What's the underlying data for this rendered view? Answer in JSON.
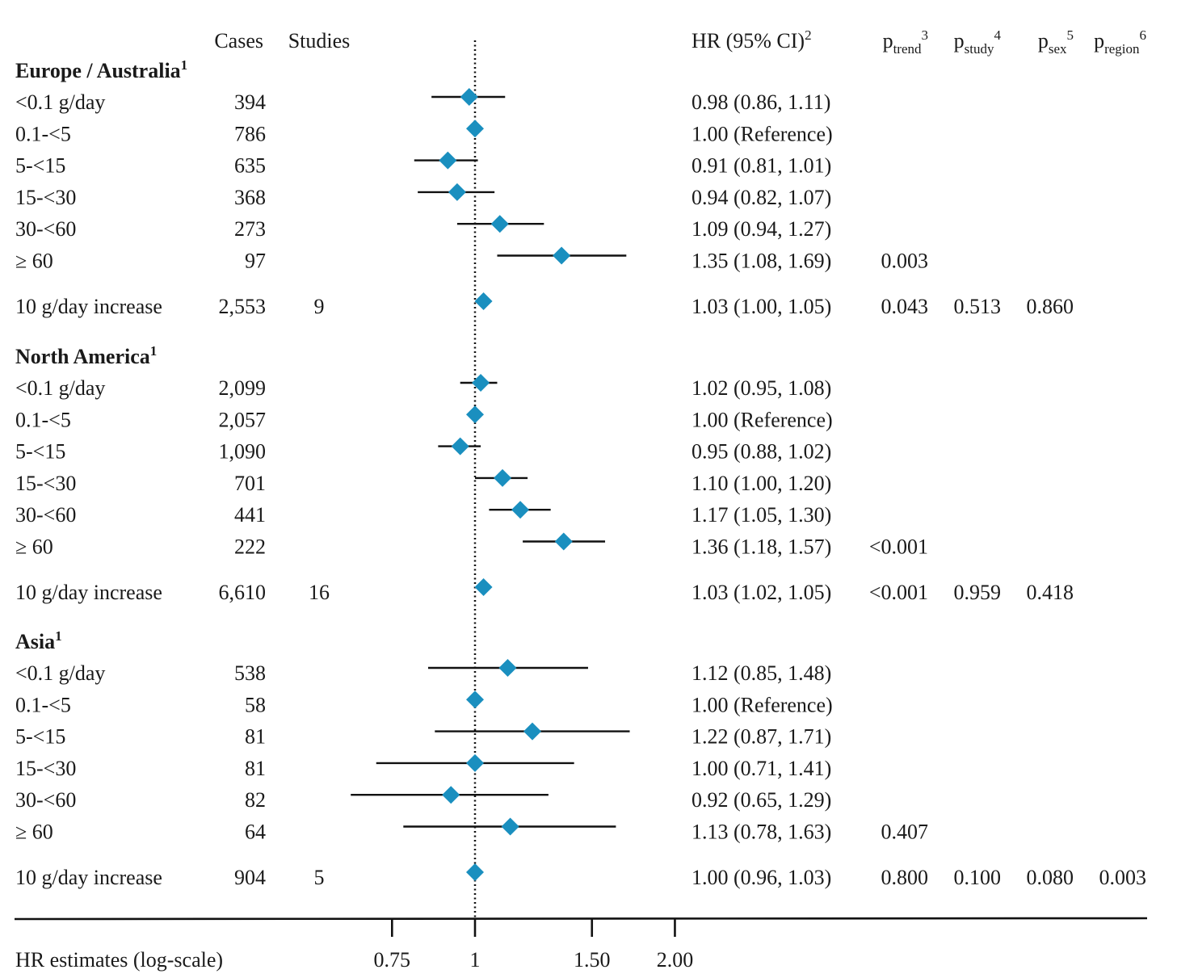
{
  "chart_data": {
    "type": "forest",
    "axis": {
      "label": "HR estimates (log-scale)",
      "scale": "log",
      "ticks": [
        {
          "value": 0.75,
          "label": "0.75"
        },
        {
          "value": 1,
          "label": "1"
        },
        {
          "value": 1.5,
          "label": "1.50"
        },
        {
          "value": 2,
          "label": "2.00"
        }
      ],
      "reference_line": 1
    },
    "headers": {
      "cases": "Cases",
      "studies": "Studies",
      "hr": "HR (95% CI)",
      "hr_sup": "2",
      "p_trend": {
        "main": "p",
        "sub": "trend",
        "sup": "3"
      },
      "p_study": {
        "main": "p",
        "sub": "study",
        "sup": "4"
      },
      "p_sex": {
        "main": "p",
        "sub": "sex",
        "sup": "5"
      },
      "p_region": {
        "main": "p",
        "sub": "region",
        "sup": "6"
      }
    },
    "marker_color": "#1a8fbf",
    "groups": [
      {
        "title": "Europe / Australia",
        "title_sup": "1",
        "rows": [
          {
            "label": "<0.1 g/day",
            "cases": "394",
            "hr": 0.98,
            "lo": 0.86,
            "hi": 1.11,
            "text": "0.98 (0.86, 1.11)",
            "p_trend": ""
          },
          {
            "label": "0.1-<5",
            "cases": "786",
            "hr": 1.0,
            "lo": null,
            "hi": null,
            "text": "1.00 (Reference)",
            "p_trend": ""
          },
          {
            "label": "5-<15",
            "cases": "635",
            "hr": 0.91,
            "lo": 0.81,
            "hi": 1.01,
            "text": "0.91 (0.81, 1.01)",
            "p_trend": ""
          },
          {
            "label": "15-<30",
            "cases": "368",
            "hr": 0.94,
            "lo": 0.82,
            "hi": 1.07,
            "text": "0.94 (0.82, 1.07)",
            "p_trend": ""
          },
          {
            "label": "30-<60",
            "cases": "273",
            "hr": 1.09,
            "lo": 0.94,
            "hi": 1.27,
            "text": "1.09 (0.94, 1.27)",
            "p_trend": ""
          },
          {
            "label": "≥ 60",
            "cases": "97",
            "hr": 1.35,
            "lo": 1.08,
            "hi": 1.69,
            "text": "1.35 (1.08, 1.69)",
            "p_trend": "0.003"
          }
        ],
        "summary": {
          "label": "10 g/day increase",
          "cases": "2,553",
          "studies": "9",
          "hr": 1.03,
          "lo": 1.0,
          "hi": 1.05,
          "text": "1.03 (1.00, 1.05)",
          "p_trend": "0.043",
          "p_study": "0.513",
          "p_sex": "0.860",
          "p_region": ""
        }
      },
      {
        "title": "North America",
        "title_sup": "1",
        "rows": [
          {
            "label": "<0.1 g/day",
            "cases": "2,099",
            "hr": 1.02,
            "lo": 0.95,
            "hi": 1.08,
            "text": "1.02 (0.95, 1.08)",
            "p_trend": ""
          },
          {
            "label": "0.1-<5",
            "cases": "2,057",
            "hr": 1.0,
            "lo": null,
            "hi": null,
            "text": "1.00 (Reference)",
            "p_trend": ""
          },
          {
            "label": "5-<15",
            "cases": "1,090",
            "hr": 0.95,
            "lo": 0.88,
            "hi": 1.02,
            "text": "0.95 (0.88, 1.02)",
            "p_trend": ""
          },
          {
            "label": "15-<30",
            "cases": "701",
            "hr": 1.1,
            "lo": 1.0,
            "hi": 1.2,
            "text": "1.10 (1.00, 1.20)",
            "p_trend": ""
          },
          {
            "label": "30-<60",
            "cases": "441",
            "hr": 1.17,
            "lo": 1.05,
            "hi": 1.3,
            "text": "1.17 (1.05, 1.30)",
            "p_trend": ""
          },
          {
            "label": "≥ 60",
            "cases": "222",
            "hr": 1.36,
            "lo": 1.18,
            "hi": 1.57,
            "text": "1.36 (1.18, 1.57)",
            "p_trend": "<0.001"
          }
        ],
        "summary": {
          "label": "10 g/day increase",
          "cases": "6,610",
          "studies": "16",
          "hr": 1.03,
          "lo": 1.02,
          "hi": 1.05,
          "text": "1.03 (1.02, 1.05)",
          "p_trend": "<0.001",
          "p_study": "0.959",
          "p_sex": "0.418",
          "p_region": ""
        }
      },
      {
        "title": "Asia",
        "title_sup": "1",
        "rows": [
          {
            "label": "<0.1 g/day",
            "cases": "538",
            "hr": 1.12,
            "lo": 0.85,
            "hi": 1.48,
            "text": "1.12 (0.85, 1.48)",
            "p_trend": ""
          },
          {
            "label": "0.1-<5",
            "cases": "58",
            "hr": 1.0,
            "lo": null,
            "hi": null,
            "text": "1.00 (Reference)",
            "p_trend": ""
          },
          {
            "label": "5-<15",
            "cases": "81",
            "hr": 1.22,
            "lo": 0.87,
            "hi": 1.71,
            "text": "1.22 (0.87, 1.71)",
            "p_trend": ""
          },
          {
            "label": "15-<30",
            "cases": "81",
            "hr": 1.0,
            "lo": 0.71,
            "hi": 1.41,
            "text": "1.00 (0.71, 1.41)",
            "p_trend": ""
          },
          {
            "label": "30-<60",
            "cases": "82",
            "hr": 0.92,
            "lo": 0.65,
            "hi": 1.29,
            "text": "0.92 (0.65, 1.29)",
            "p_trend": ""
          },
          {
            "label": "≥ 60",
            "cases": "64",
            "hr": 1.13,
            "lo": 0.78,
            "hi": 1.63,
            "text": "1.13 (0.78, 1.63)",
            "p_trend": "0.407"
          }
        ],
        "summary": {
          "label": "10 g/day increase",
          "cases": "904",
          "studies": "5",
          "hr": 1.0,
          "lo": 0.96,
          "hi": 1.03,
          "text": "1.00 (0.96, 1.03)",
          "p_trend": "0.800",
          "p_study": "0.100",
          "p_sex": "0.080",
          "p_region": "0.003"
        }
      }
    ]
  }
}
